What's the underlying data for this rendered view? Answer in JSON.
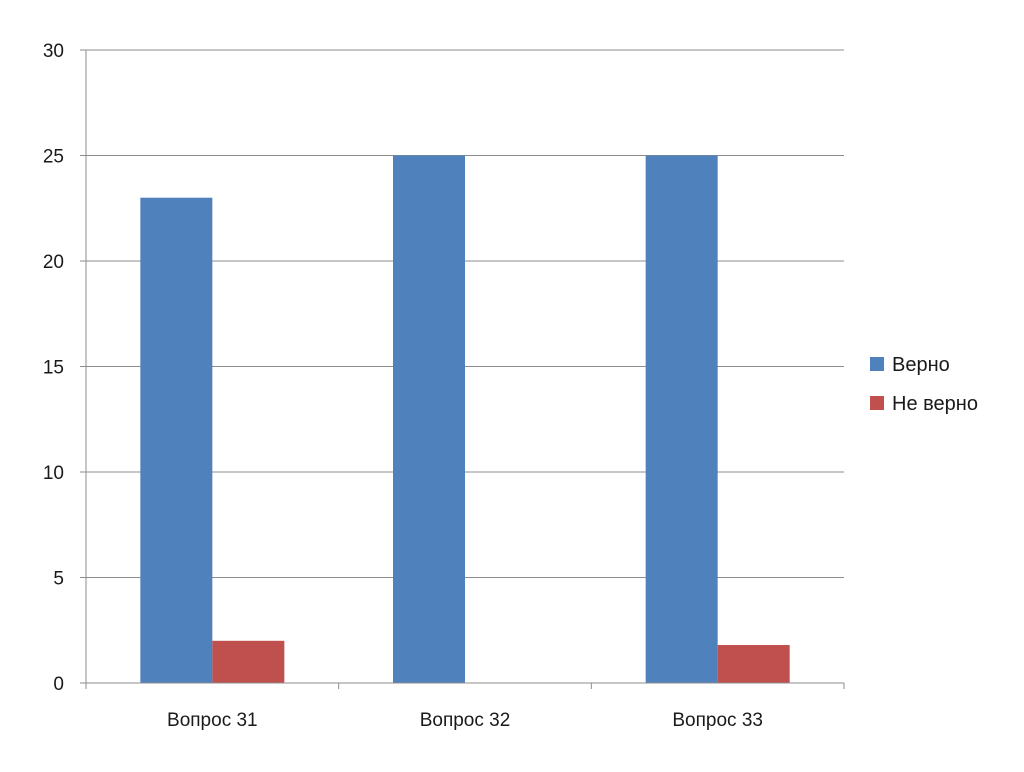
{
  "chart_data": {
    "type": "bar",
    "categories": [
      "Вопрос 31",
      "Вопрос 32",
      "Вопрос 33"
    ],
    "series": [
      {
        "name": "Верно",
        "values": [
          23,
          25,
          25
        ],
        "color": "#4F81BD"
      },
      {
        "name": "Не верно",
        "values": [
          2,
          0,
          1.8
        ],
        "color": "#C0504D"
      }
    ],
    "y_ticks": [
      "0",
      "5",
      "10",
      "15",
      "20",
      "25",
      "30"
    ],
    "ylim": [
      0,
      30
    ],
    "grid": true,
    "legend_position": "right",
    "title": "",
    "xlabel": "",
    "ylabel": ""
  }
}
